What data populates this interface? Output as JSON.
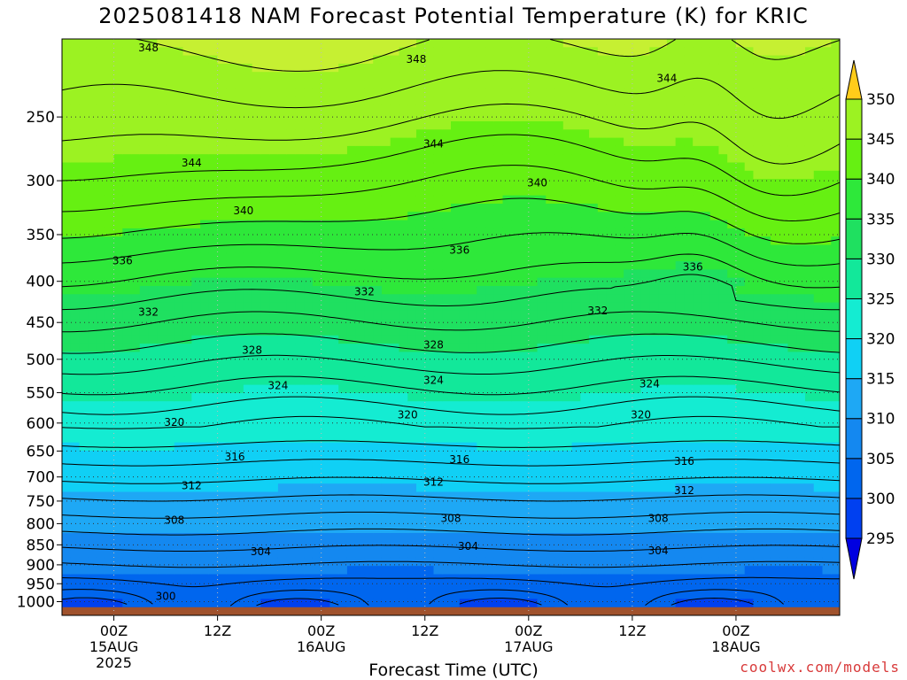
{
  "title": "2025081418 NAM Forecast Potential Temperature (K) for KRIC",
  "credit": "coolwx.com/models",
  "colors": {
    "ground": "#a0522d",
    "bands": [
      "#0000e0",
      "#0040f0",
      "#0066ee",
      "#1488f0",
      "#1ea8f5",
      "#10d0f5",
      "#14ecd2",
      "#12e89a",
      "#1fe060",
      "#2ee83a",
      "#66f012",
      "#9cf222",
      "#c6f032",
      "#eef020",
      "#fff21a",
      "#ffcc1a"
    ]
  },
  "chart_data": {
    "type": "heatmap",
    "title": "2025081418 NAM Forecast Potential Temperature (K) for KRIC",
    "xlabel": "Forecast Time (UTC)",
    "ylabel": "",
    "x_range_hours": [
      -6,
      84
    ],
    "x_ticks": [
      {
        "hour": 0,
        "lines": [
          "00Z",
          "15AUG",
          "2025"
        ]
      },
      {
        "hour": 12,
        "lines": [
          "12Z"
        ]
      },
      {
        "hour": 24,
        "lines": [
          "00Z",
          "16AUG"
        ]
      },
      {
        "hour": 36,
        "lines": [
          "12Z"
        ]
      },
      {
        "hour": 48,
        "lines": [
          "00Z",
          "17AUG"
        ]
      },
      {
        "hour": 60,
        "lines": [
          "12Z"
        ]
      },
      {
        "hour": 72,
        "lines": [
          "00Z",
          "18AUG"
        ]
      }
    ],
    "y_axis": "pressure (hPa), log scale, reversed",
    "y_range": [
      1040,
      200
    ],
    "y_ticks": [
      250,
      300,
      350,
      400,
      450,
      500,
      550,
      600,
      650,
      700,
      750,
      800,
      850,
      900,
      950,
      1000
    ],
    "grid": true,
    "colorbar": {
      "unit": "K",
      "levels": [
        295,
        300,
        305,
        310,
        315,
        320,
        325,
        330,
        335,
        340,
        345,
        350
      ],
      "extend": "both"
    },
    "contour_interval": 2,
    "contour_labels": [
      {
        "value": 348,
        "hour": 4,
        "p": 205
      },
      {
        "value": 348,
        "hour": 35,
        "p": 212
      },
      {
        "value": 344,
        "hour": 64,
        "p": 224
      },
      {
        "value": 344,
        "hour": 9,
        "p": 285
      },
      {
        "value": 344,
        "hour": 37,
        "p": 270
      },
      {
        "value": 340,
        "hour": 49,
        "p": 302
      },
      {
        "value": 340,
        "hour": 15,
        "p": 327
      },
      {
        "value": 336,
        "hour": 40,
        "p": 366
      },
      {
        "value": 336,
        "hour": 67,
        "p": 384
      },
      {
        "value": 336,
        "hour": 1,
        "p": 377
      },
      {
        "value": 332,
        "hour": 29,
        "p": 412
      },
      {
        "value": 332,
        "hour": 4,
        "p": 437
      },
      {
        "value": 332,
        "hour": 56,
        "p": 435
      },
      {
        "value": 328,
        "hour": 16,
        "p": 487
      },
      {
        "value": 328,
        "hour": 37,
        "p": 480
      },
      {
        "value": 324,
        "hour": 19,
        "p": 539
      },
      {
        "value": 324,
        "hour": 37,
        "p": 531
      },
      {
        "value": 324,
        "hour": 62,
        "p": 536
      },
      {
        "value": 320,
        "hour": 7,
        "p": 599
      },
      {
        "value": 320,
        "hour": 34,
        "p": 586
      },
      {
        "value": 320,
        "hour": 61,
        "p": 586
      },
      {
        "value": 316,
        "hour": 14,
        "p": 661
      },
      {
        "value": 316,
        "hour": 40,
        "p": 666
      },
      {
        "value": 316,
        "hour": 66,
        "p": 669
      },
      {
        "value": 312,
        "hour": 9,
        "p": 718
      },
      {
        "value": 312,
        "hour": 37,
        "p": 710
      },
      {
        "value": 312,
        "hour": 66,
        "p": 728
      },
      {
        "value": 308,
        "hour": 7,
        "p": 792
      },
      {
        "value": 308,
        "hour": 39,
        "p": 788
      },
      {
        "value": 308,
        "hour": 63,
        "p": 788
      },
      {
        "value": 304,
        "hour": 17,
        "p": 867
      },
      {
        "value": 304,
        "hour": 41,
        "p": 854
      },
      {
        "value": 304,
        "hour": 63,
        "p": 864
      },
      {
        "value": 300,
        "hour": 6,
        "p": 985
      }
    ]
  }
}
